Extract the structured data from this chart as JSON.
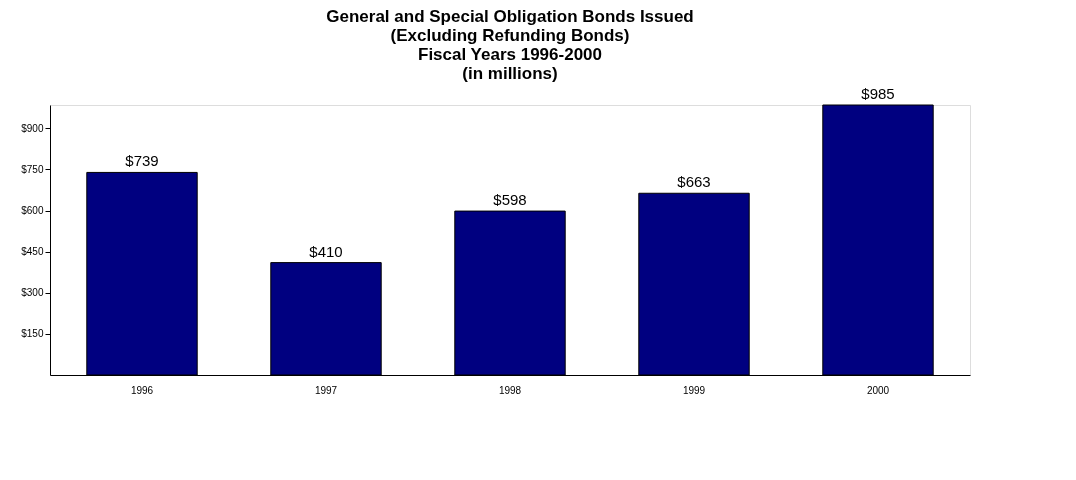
{
  "chart_data": {
    "type": "bar",
    "title": [
      "General and Special Obligation Bonds Issued",
      "(Excluding Refunding Bonds)",
      "Fiscal Years 1996-2000",
      "(in millions)"
    ],
    "categories": [
      "1996",
      "1997",
      "1998",
      "1999",
      "2000"
    ],
    "values": [
      739,
      410,
      598,
      663,
      985
    ],
    "value_labels": [
      "$739",
      "$410",
      "$598",
      "$663",
      "$985"
    ],
    "color": "#000080",
    "ylim": [
      0,
      985
    ],
    "yticks": [
      {
        "value": 150,
        "label": "$150"
      },
      {
        "value": 300,
        "label": "$300"
      },
      {
        "value": 450,
        "label": "$450"
      },
      {
        "value": 600,
        "label": "$600"
      },
      {
        "value": 750,
        "label": "$750"
      },
      {
        "value": 900,
        "label": "$900"
      }
    ],
    "grid": false
  }
}
